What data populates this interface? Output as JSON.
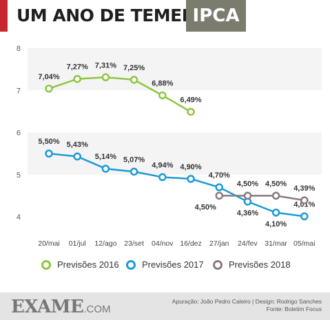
{
  "header": {
    "title": "UM ANO DE TEMER",
    "box_label": "IPCA",
    "accent_color": "#c7282e",
    "box_color": "#7b7b6e"
  },
  "footer": {
    "logo_main": "EXAME",
    "logo_suffix": ".COM",
    "credit_line1": "Apuração: João Pedro Caleiro  |  Design: Rodrigo Sanches",
    "credit_line2": "Fonte: Boletim Focus"
  },
  "chart_data": {
    "type": "line",
    "categories": [
      "20/mai",
      "01/jul",
      "12/ago",
      "23/set",
      "04/nov",
      "16/dez",
      "27/jan",
      "24/fev",
      "31/mar",
      "05/mai"
    ],
    "ylim": [
      4,
      8
    ],
    "yticks": [
      "4",
      "5",
      "6",
      "7",
      "8"
    ],
    "legend_position": "bottom",
    "series": [
      {
        "name": "Previsões 2016",
        "color": "#8cc63f",
        "values": [
          7.04,
          7.27,
          7.31,
          7.25,
          6.88,
          6.49,
          null,
          null,
          null,
          null
        ],
        "labels": [
          "7,04%",
          "7,27%",
          "7,31%",
          "7,25%",
          "6,88%",
          "6,49%",
          null,
          null,
          null,
          null
        ]
      },
      {
        "name": "Previsões 2017",
        "color": "#1b9ad6",
        "values": [
          5.5,
          5.43,
          5.14,
          5.07,
          4.94,
          4.9,
          4.7,
          4.36,
          4.1,
          4.01
        ],
        "labels": [
          "5,50%",
          "5,43%",
          "5,14%",
          "5,07%",
          "4,94%",
          "4,90%",
          "4,70%",
          "4,36%",
          "4,10%",
          "4,01%"
        ]
      },
      {
        "name": "Previsões 2018",
        "color": "#8a7a7e",
        "values": [
          null,
          null,
          null,
          null,
          null,
          null,
          4.5,
          4.5,
          4.5,
          4.39
        ],
        "labels": [
          null,
          null,
          null,
          null,
          null,
          null,
          "4,50%",
          "4,50%",
          "4,50%",
          "4,39%"
        ]
      }
    ]
  }
}
